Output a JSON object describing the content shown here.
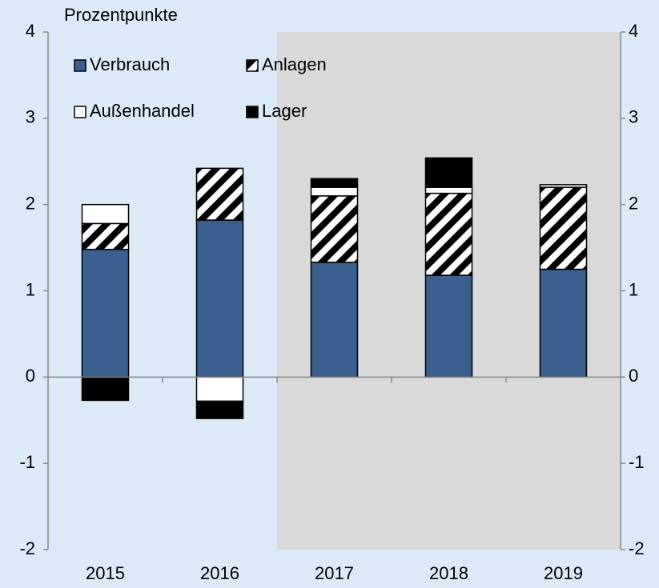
{
  "chart_data": {
    "type": "stacked_bar",
    "title": "Prozentpunkte",
    "categories": [
      "2015",
      "2016",
      "2017",
      "2018",
      "2019"
    ],
    "series": [
      {
        "name": "Verbrauch",
        "color": "#3a5f8f",
        "values": [
          1.48,
          1.82,
          1.33,
          1.18,
          1.25
        ]
      },
      {
        "name": "Anlagen",
        "color": "#000000",
        "pattern": "hatch",
        "values": [
          0.3,
          0.6,
          0.77,
          0.95,
          0.95
        ]
      },
      {
        "name": "Außenhandel",
        "color": "#ffffff",
        "values": [
          0.22,
          -0.28,
          0.1,
          0.07,
          0.03
        ]
      },
      {
        "name": "Lager",
        "color": "#000000",
        "values": [
          -0.27,
          -0.2,
          0.1,
          0.34,
          0
        ]
      }
    ],
    "ylim": [
      -2,
      4
    ],
    "yticks": [
      -2,
      -1,
      0,
      1,
      2,
      3,
      4
    ],
    "shaded_from": "2017",
    "shade_color": "#d9d9d9"
  }
}
